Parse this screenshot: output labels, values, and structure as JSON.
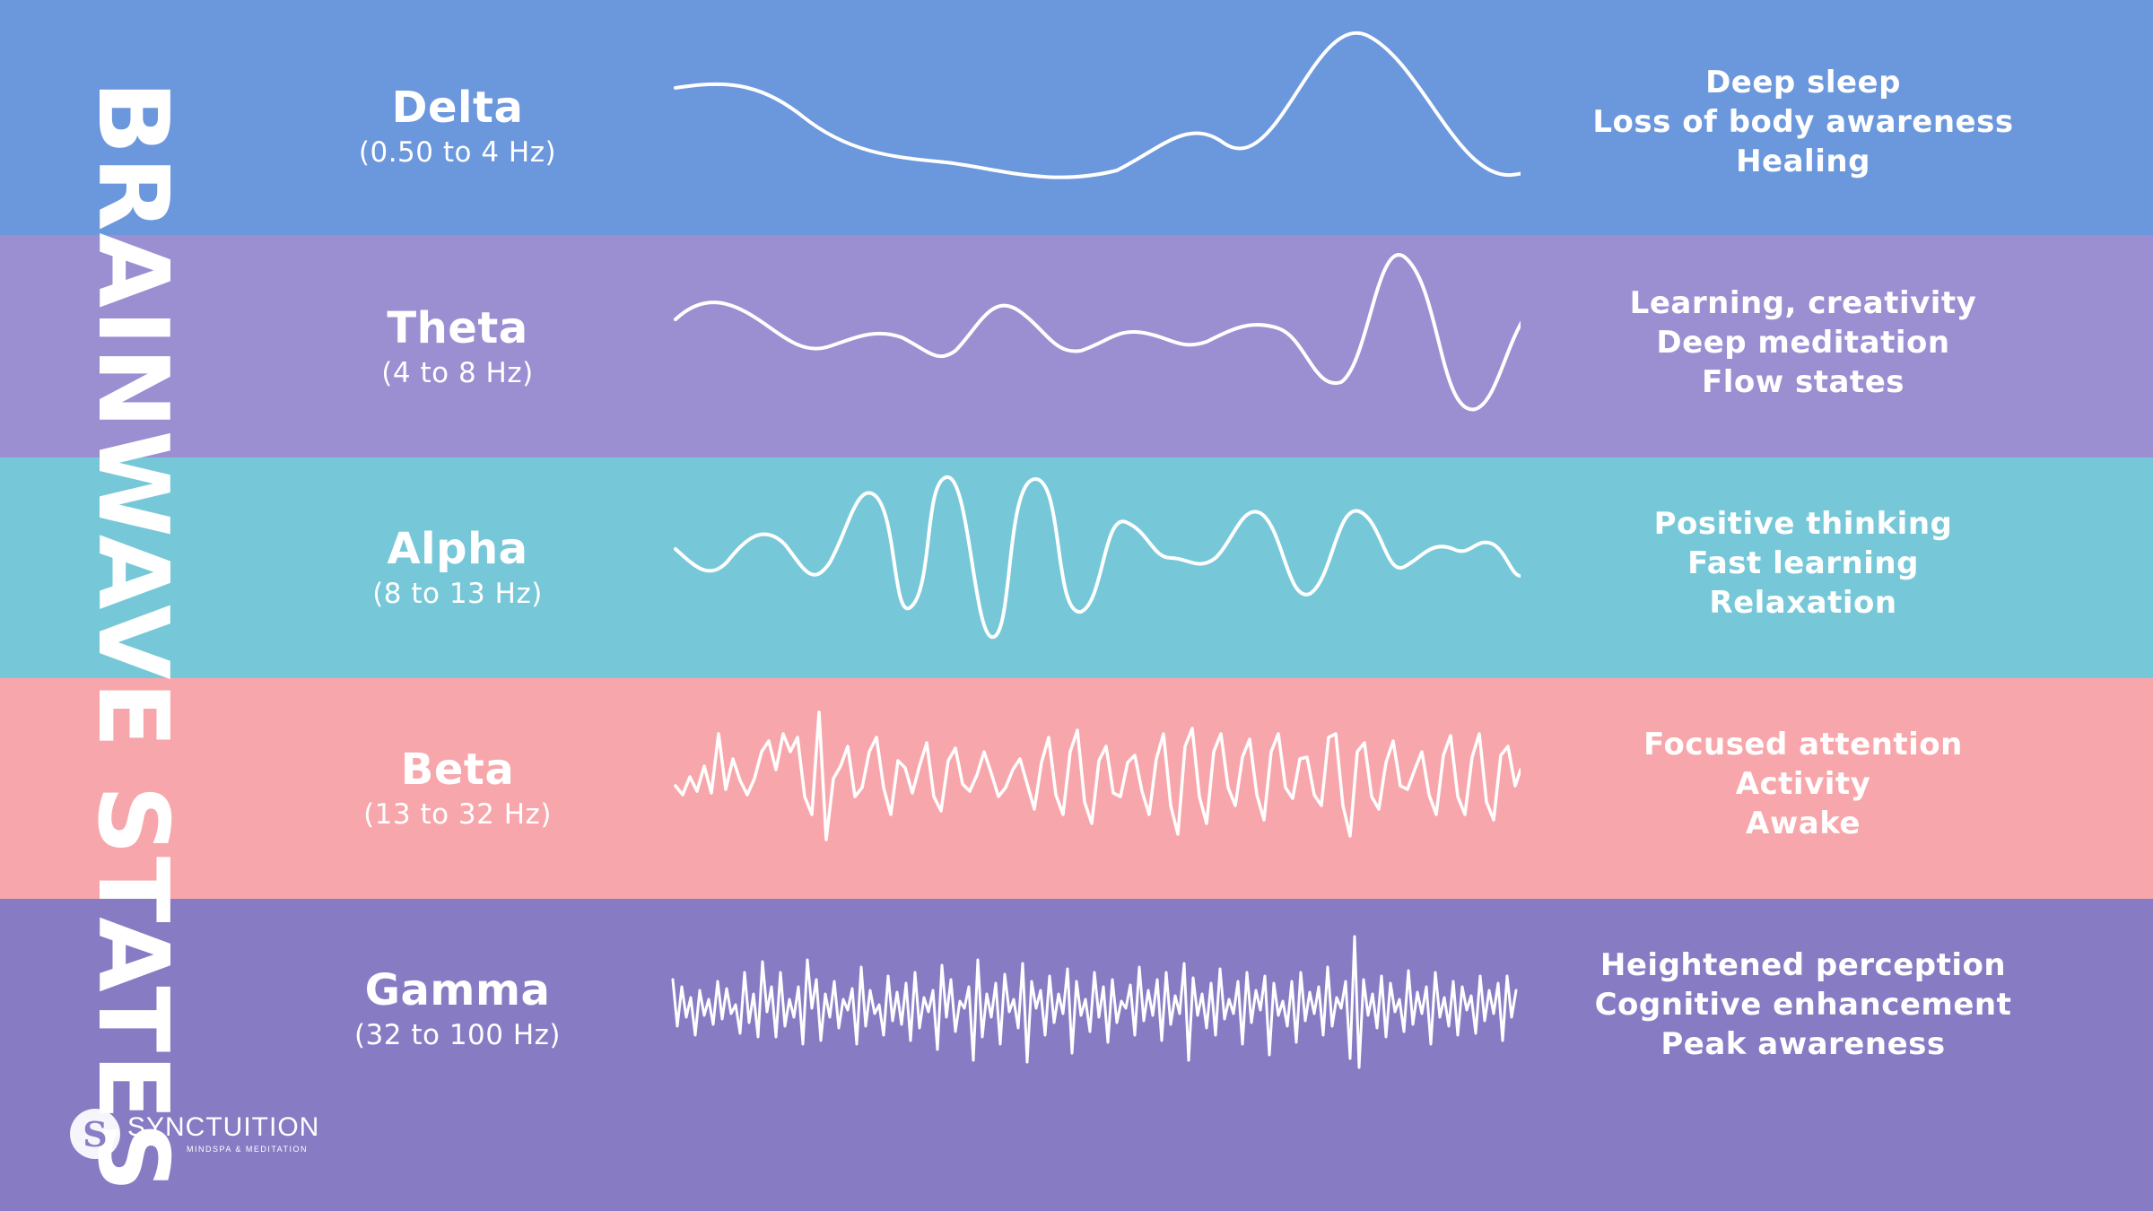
{
  "title": "BRAINWAVE STATES",
  "bands": [
    {
      "name": "Delta",
      "range": "(0.50 to 4 Hz)",
      "descriptions": [
        "Deep sleep",
        "Loss of body awareness",
        "Healing"
      ],
      "color": "#6b97dc"
    },
    {
      "name": "Theta",
      "range": "(4 to 8 Hz)",
      "descriptions": [
        "Learning, creativity",
        "Deep meditation",
        "Flow states"
      ],
      "color": "#9b8fd2"
    },
    {
      "name": "Alpha",
      "range": "(8 to 13 Hz)",
      "descriptions": [
        "Positive thinking",
        "Fast learning",
        "Relaxation"
      ],
      "color": "#76c8d9"
    },
    {
      "name": "Beta",
      "range": "(13 to 32 Hz)",
      "descriptions": [
        "Focused attention",
        "Activity",
        "Awake"
      ],
      "color": "#f7a7ab"
    },
    {
      "name": "Gamma",
      "range": "(32 to 100 Hz)",
      "descriptions": [
        "Heightened perception",
        "Cognitive enhancement",
        "Peak awareness"
      ],
      "color": "#877cc4"
    }
  ],
  "logo": {
    "name": "SYNCTUITION",
    "tagline": "MINDSPA & MEDITATION",
    "icon": "synctuition-logo-icon"
  }
}
